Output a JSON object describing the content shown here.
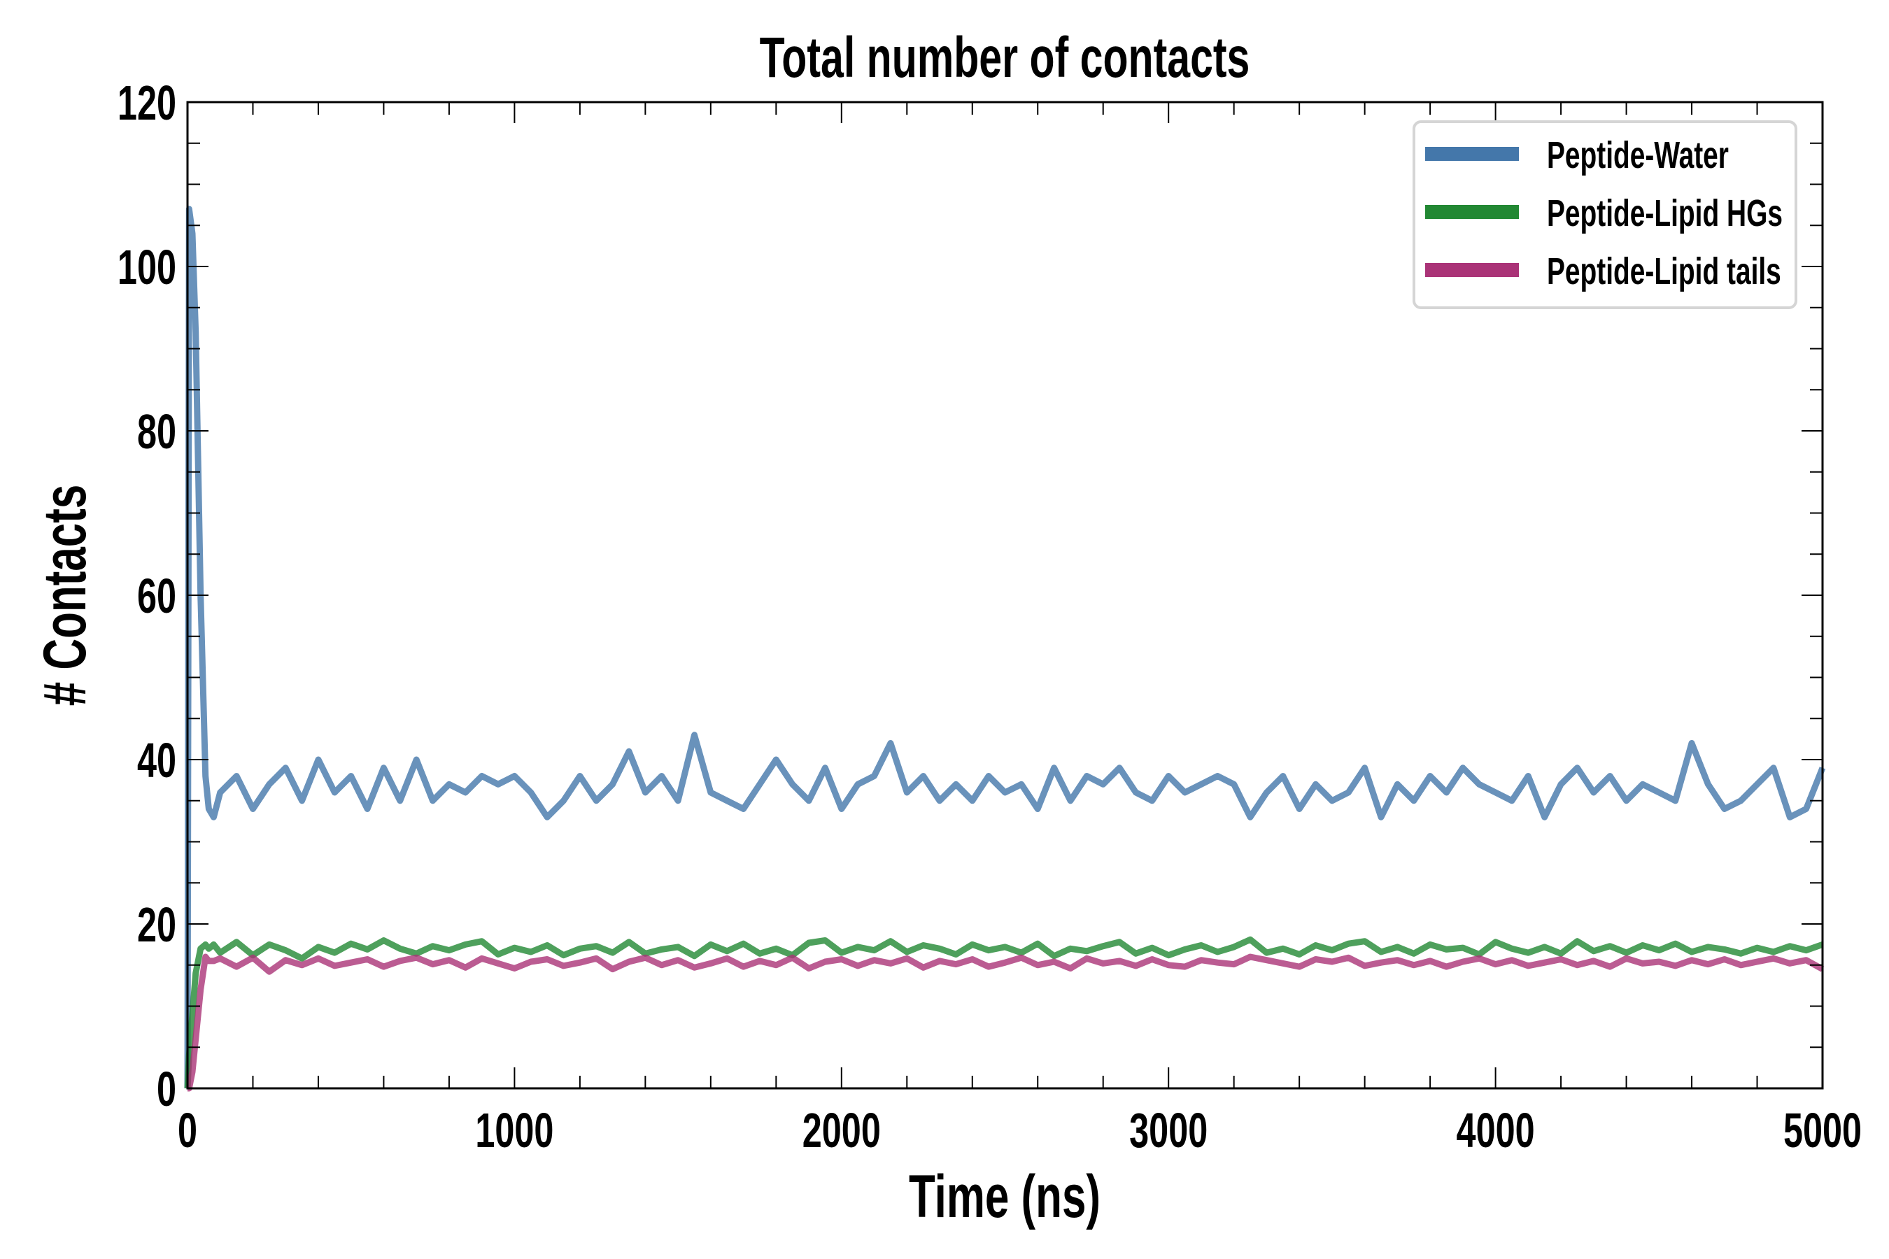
{
  "chart_data": {
    "type": "line",
    "title": "Total number of contacts",
    "xlabel": "Time (ns)",
    "ylabel": "# Contacts",
    "xlim": [
      0,
      5000
    ],
    "ylim": [
      0,
      120
    ],
    "xticks": [
      "0",
      "1000",
      "2000",
      "3000",
      "4000",
      "5000"
    ],
    "yticks": [
      "0",
      "20",
      "40",
      "60",
      "80",
      "100",
      "120"
    ],
    "grid": false,
    "legend_position": "top-right",
    "x": [
      0,
      5,
      15,
      25,
      40,
      55,
      65,
      80,
      100,
      150,
      200,
      250,
      300,
      350,
      400,
      450,
      500,
      550,
      600,
      650,
      700,
      750,
      800,
      850,
      900,
      950,
      1000,
      1050,
      1100,
      1150,
      1200,
      1250,
      1300,
      1350,
      1400,
      1450,
      1500,
      1550,
      1600,
      1650,
      1700,
      1750,
      1800,
      1850,
      1900,
      1950,
      2000,
      2050,
      2100,
      2150,
      2200,
      2250,
      2300,
      2350,
      2400,
      2450,
      2500,
      2550,
      2600,
      2650,
      2700,
      2750,
      2800,
      2850,
      2900,
      2950,
      3000,
      3050,
      3100,
      3150,
      3200,
      3250,
      3300,
      3350,
      3400,
      3450,
      3500,
      3550,
      3600,
      3650,
      3700,
      3750,
      3800,
      3850,
      3900,
      3950,
      4000,
      4050,
      4100,
      4150,
      4200,
      4250,
      4300,
      4350,
      4400,
      4450,
      4500,
      4550,
      4600,
      4650,
      4700,
      4750,
      4800,
      4850,
      4900,
      4950,
      5000
    ],
    "series": [
      {
        "name": "Peptide-Water",
        "color": "#4477aa",
        "values": [
          0,
          107,
          104,
          92,
          60,
          38,
          34,
          33,
          36,
          38,
          34,
          37,
          39,
          35,
          40,
          36,
          38,
          34,
          39,
          35,
          40,
          35,
          37,
          36,
          38,
          37,
          38,
          36,
          33,
          35,
          38,
          35,
          37,
          41,
          36,
          38,
          35,
          43,
          36,
          35,
          34,
          37,
          40,
          37,
          35,
          39,
          34,
          37,
          38,
          42,
          36,
          38,
          35,
          37,
          35,
          38,
          36,
          37,
          34,
          39,
          35,
          38,
          37,
          39,
          36,
          35,
          38,
          36,
          37,
          38,
          37,
          33,
          36,
          38,
          34,
          37,
          35,
          36,
          39,
          33,
          37,
          35,
          38,
          36,
          39,
          37,
          36,
          35,
          38,
          33,
          37,
          39,
          36,
          38,
          35,
          37,
          36,
          35,
          42,
          37,
          34,
          35,
          37,
          39,
          33,
          34,
          39
        ]
      },
      {
        "name": "Peptide-Lipid HGs",
        "color": "#228833",
        "values": [
          0,
          4,
          9,
          14,
          17,
          17.5,
          17,
          17.5,
          16.5,
          17.8,
          16.2,
          17.5,
          16.8,
          15.8,
          17.2,
          16.5,
          17.6,
          16.9,
          18,
          17,
          16.4,
          17.3,
          16.8,
          17.5,
          17.9,
          16.3,
          17.1,
          16.6,
          17.4,
          16.2,
          17,
          17.3,
          16.5,
          17.8,
          16.4,
          16.9,
          17.2,
          16.1,
          17.5,
          16.7,
          17.6,
          16.4,
          17,
          16.2,
          17.7,
          18,
          16.5,
          17.2,
          16.8,
          17.9,
          16.6,
          17.4,
          17,
          16.3,
          17.5,
          16.8,
          17.2,
          16.5,
          17.6,
          16.1,
          17,
          16.7,
          17.3,
          17.8,
          16.4,
          17.1,
          16.2,
          16.9,
          17.4,
          16.6,
          17.2,
          18.1,
          16.5,
          17,
          16.3,
          17.4,
          16.8,
          17.6,
          17.9,
          16.6,
          17.2,
          16.4,
          17.5,
          16.9,
          17.1,
          16.3,
          17.8,
          17,
          16.5,
          17.2,
          16.4,
          17.9,
          16.7,
          17.3,
          16.5,
          17.4,
          16.8,
          17.6,
          16.6,
          17.2,
          16.9,
          16.4,
          17.1,
          16.6,
          17.3,
          16.8,
          17.5
        ]
      },
      {
        "name": "Peptide-Lipid tails",
        "color": "#aa3377",
        "values": [
          0,
          0,
          2,
          6,
          12,
          16,
          15.5,
          15.5,
          15.8,
          14.8,
          15.9,
          14.2,
          15.6,
          15,
          15.8,
          14.9,
          15.3,
          15.7,
          14.8,
          15.5,
          15.9,
          15.1,
          15.6,
          14.7,
          15.8,
          15.2,
          14.6,
          15.4,
          15.7,
          14.9,
          15.3,
          15.8,
          14.5,
          15.4,
          15.9,
          15,
          15.6,
          14.7,
          15.2,
          15.8,
          14.8,
          15.5,
          15,
          15.9,
          14.6,
          15.4,
          15.7,
          14.9,
          15.6,
          15.2,
          15.8,
          14.7,
          15.5,
          15.1,
          15.7,
          14.8,
          15.3,
          15.9,
          15,
          15.4,
          14.6,
          15.8,
          15.2,
          15.5,
          14.9,
          15.7,
          15,
          14.8,
          15.6,
          15.3,
          15.1,
          16,
          15.6,
          15.2,
          14.8,
          15.7,
          15.4,
          15.9,
          14.9,
          15.3,
          15.6,
          15,
          15.5,
          14.8,
          15.4,
          15.8,
          15.1,
          15.6,
          14.9,
          15.3,
          15.7,
          15,
          15.5,
          14.8,
          15.8,
          15.2,
          15.4,
          14.9,
          15.6,
          15.1,
          15.7,
          15,
          15.4,
          15.8,
          15.2,
          15.6,
          14.5
        ]
      }
    ]
  }
}
